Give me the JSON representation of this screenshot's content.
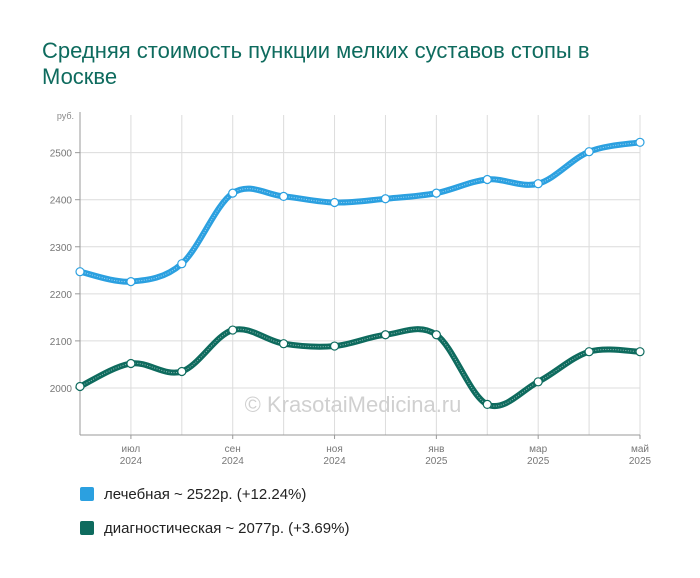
{
  "title": "Средняя стоимость пункции мелких суставов стопы в Москве",
  "watermark": "© KrasotaiMedicina.ru",
  "chart_data": {
    "type": "line",
    "ylabel": "руб.",
    "ylim": [
      1900,
      2580
    ],
    "yticks": [
      2000,
      2100,
      2200,
      2300,
      2400,
      2500
    ],
    "x": [
      "2024-06",
      "2024-07",
      "2024-08",
      "2024-09",
      "2024-10",
      "2024-11",
      "2024-12",
      "2025-01",
      "2025-02",
      "2025-03",
      "2025-04",
      "2025-05"
    ],
    "xtick_labels": [
      {
        "index": 1,
        "month": "июл",
        "year": "2024"
      },
      {
        "index": 3,
        "month": "сен",
        "year": "2024"
      },
      {
        "index": 5,
        "month": "ноя",
        "year": "2024"
      },
      {
        "index": 7,
        "month": "янв",
        "year": "2025"
      },
      {
        "index": 9,
        "month": "мар",
        "year": "2025"
      },
      {
        "index": 11,
        "month": "май",
        "year": "2025"
      }
    ],
    "grid": true,
    "legend_position": "bottom-left",
    "series": [
      {
        "label": "лечебная",
        "summary": "2522р. (+12.24%)",
        "color": "#2ba0e0",
        "values": [
          2247,
          2226,
          2264,
          2414,
          2407,
          2394,
          2402,
          2414,
          2443,
          2434,
          2502,
          2522
        ]
      },
      {
        "label": "диагностическая",
        "summary": "2077р. (+3.69%)",
        "color": "#0e6b5e",
        "values": [
          2003,
          2052,
          2035,
          2123,
          2094,
          2089,
          2113,
          2113,
          1965,
          2013,
          2077,
          2077
        ]
      }
    ]
  },
  "legend": [
    {
      "label": "лечебная",
      "separator": "~",
      "summary": "2522р. (+12.24%)",
      "color": "#2ba0e0"
    },
    {
      "label": "диагностическая",
      "separator": "~",
      "summary": "2077р. (+3.69%)",
      "color": "#0e6b5e"
    }
  ]
}
